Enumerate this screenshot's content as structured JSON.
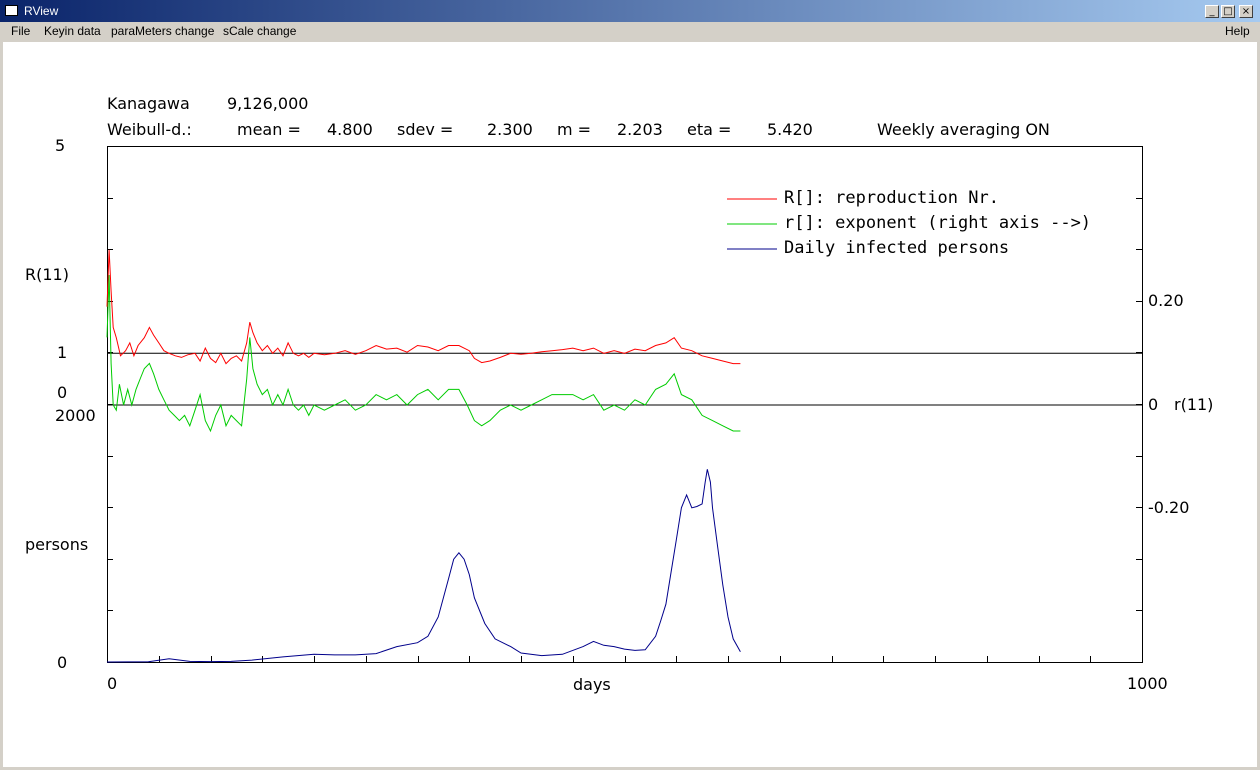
{
  "window": {
    "title": "RView"
  },
  "menu": {
    "file": "File",
    "keyin": "Keyin data",
    "params": "paraMeters change",
    "scale": "sCale change",
    "help": "Help"
  },
  "header": {
    "region": "Kanagawa",
    "population": "9,126,000",
    "weibull_prefix": "Weibull-d.:",
    "mean_label": "mean =",
    "mean": "4.800",
    "sdev_label": "sdev =",
    "sdev": "2.300",
    "m_label": "m =",
    "m": "2.203",
    "eta_label": "eta =",
    "eta": "5.420",
    "averaging": "Weekly averaging ON"
  },
  "chart_data": {
    "type": "line",
    "xlabel": "days",
    "xlim": [
      0,
      1000
    ],
    "x_tick_labels": [
      "0",
      "1000"
    ],
    "left_axis": {
      "R_label": "R(11)",
      "R_ticks": [
        "5",
        "1",
        "0"
      ],
      "persons_label": "persons",
      "persons_ticks": [
        "2000",
        "0"
      ]
    },
    "right_axis": {
      "label": "r(11)",
      "ticks": [
        "0.20",
        "0",
        "-0.20"
      ]
    },
    "colors": {
      "R": "#ff0000",
      "r": "#00cc00",
      "daily": "#00008b",
      "ref": "#000000"
    },
    "legend": [
      "R[]: reproduction Nr.",
      "r[]: exponent (right axis -->)",
      "Daily infected persons"
    ],
    "legend_placement": "top-right",
    "series": [
      {
        "name": "R[]: reproduction Nr.",
        "axis": "R",
        "points": [
          [
            0,
            1.9
          ],
          [
            2,
            3.0
          ],
          [
            4,
            2.2
          ],
          [
            6,
            1.5
          ],
          [
            9,
            1.3
          ],
          [
            13,
            0.95
          ],
          [
            18,
            1.05
          ],
          [
            22,
            1.2
          ],
          [
            26,
            0.95
          ],
          [
            30,
            1.15
          ],
          [
            36,
            1.3
          ],
          [
            41,
            1.5
          ],
          [
            45,
            1.35
          ],
          [
            50,
            1.2
          ],
          [
            55,
            1.05
          ],
          [
            60,
            1.0
          ],
          [
            66,
            0.95
          ],
          [
            72,
            0.92
          ],
          [
            78,
            0.97
          ],
          [
            85,
            1.0
          ],
          [
            90,
            0.85
          ],
          [
            95,
            1.1
          ],
          [
            100,
            0.9
          ],
          [
            105,
            0.82
          ],
          [
            110,
            1.0
          ],
          [
            115,
            0.8
          ],
          [
            120,
            0.9
          ],
          [
            125,
            0.95
          ],
          [
            130,
            0.85
          ],
          [
            135,
            1.2
          ],
          [
            138,
            1.6
          ],
          [
            141,
            1.4
          ],
          [
            145,
            1.2
          ],
          [
            150,
            1.05
          ],
          [
            155,
            1.15
          ],
          [
            160,
            1.0
          ],
          [
            165,
            1.1
          ],
          [
            170,
            0.95
          ],
          [
            175,
            1.2
          ],
          [
            180,
            1.0
          ],
          [
            185,
            0.95
          ],
          [
            190,
            1.0
          ],
          [
            195,
            0.92
          ],
          [
            200,
            1.0
          ],
          [
            210,
            0.97
          ],
          [
            220,
            1.0
          ],
          [
            230,
            1.05
          ],
          [
            240,
            0.98
          ],
          [
            250,
            1.05
          ],
          [
            260,
            1.15
          ],
          [
            270,
            1.08
          ],
          [
            280,
            1.1
          ],
          [
            290,
            1.02
          ],
          [
            300,
            1.15
          ],
          [
            310,
            1.12
          ],
          [
            320,
            1.05
          ],
          [
            330,
            1.15
          ],
          [
            340,
            1.15
          ],
          [
            350,
            1.05
          ],
          [
            355,
            0.9
          ],
          [
            362,
            0.82
          ],
          [
            370,
            0.85
          ],
          [
            380,
            0.92
          ],
          [
            390,
            1.0
          ],
          [
            400,
            0.98
          ],
          [
            410,
            1.0
          ],
          [
            420,
            1.03
          ],
          [
            430,
            1.05
          ],
          [
            440,
            1.07
          ],
          [
            450,
            1.1
          ],
          [
            460,
            1.05
          ],
          [
            470,
            1.1
          ],
          [
            480,
            1.0
          ],
          [
            490,
            1.05
          ],
          [
            500,
            1.0
          ],
          [
            510,
            1.08
          ],
          [
            520,
            1.05
          ],
          [
            530,
            1.15
          ],
          [
            540,
            1.2
          ],
          [
            548,
            1.3
          ],
          [
            555,
            1.1
          ],
          [
            565,
            1.05
          ],
          [
            575,
            0.95
          ],
          [
            585,
            0.9
          ],
          [
            595,
            0.85
          ],
          [
            605,
            0.8
          ],
          [
            612,
            0.8
          ]
        ]
      },
      {
        "name": "r[]: exponent (right axis -->)",
        "axis": "r",
        "points": [
          [
            0,
            0.13
          ],
          [
            2,
            0.25
          ],
          [
            4,
            0.08
          ],
          [
            6,
            0.0
          ],
          [
            9,
            -0.01
          ],
          [
            12,
            0.04
          ],
          [
            16,
            0.0
          ],
          [
            20,
            0.03
          ],
          [
            24,
            0.0
          ],
          [
            28,
            0.03
          ],
          [
            32,
            0.05
          ],
          [
            36,
            0.07
          ],
          [
            41,
            0.08
          ],
          [
            45,
            0.06
          ],
          [
            50,
            0.03
          ],
          [
            55,
            0.01
          ],
          [
            60,
            -0.01
          ],
          [
            65,
            -0.02
          ],
          [
            70,
            -0.03
          ],
          [
            75,
            -0.02
          ],
          [
            80,
            -0.04
          ],
          [
            85,
            -0.01
          ],
          [
            90,
            0.02
          ],
          [
            95,
            -0.03
          ],
          [
            100,
            -0.05
          ],
          [
            105,
            -0.02
          ],
          [
            110,
            0.0
          ],
          [
            115,
            -0.04
          ],
          [
            120,
            -0.02
          ],
          [
            125,
            -0.03
          ],
          [
            130,
            -0.04
          ],
          [
            135,
            0.05
          ],
          [
            138,
            0.13
          ],
          [
            141,
            0.07
          ],
          [
            145,
            0.04
          ],
          [
            150,
            0.02
          ],
          [
            155,
            0.03
          ],
          [
            160,
            0.0
          ],
          [
            165,
            0.02
          ],
          [
            170,
            0.0
          ],
          [
            175,
            0.03
          ],
          [
            180,
            0.0
          ],
          [
            185,
            -0.01
          ],
          [
            190,
            0.0
          ],
          [
            195,
            -0.02
          ],
          [
            200,
            0.0
          ],
          [
            210,
            -0.01
          ],
          [
            220,
            0.0
          ],
          [
            230,
            0.01
          ],
          [
            240,
            -0.01
          ],
          [
            250,
            0.0
          ],
          [
            260,
            0.02
          ],
          [
            270,
            0.01
          ],
          [
            280,
            0.02
          ],
          [
            290,
            0.0
          ],
          [
            300,
            0.02
          ],
          [
            310,
            0.03
          ],
          [
            320,
            0.01
          ],
          [
            330,
            0.03
          ],
          [
            340,
            0.03
          ],
          [
            348,
            0.0
          ],
          [
            355,
            -0.03
          ],
          [
            362,
            -0.04
          ],
          [
            370,
            -0.03
          ],
          [
            380,
            -0.01
          ],
          [
            390,
            0.0
          ],
          [
            400,
            -0.01
          ],
          [
            410,
            0.0
          ],
          [
            420,
            0.01
          ],
          [
            430,
            0.02
          ],
          [
            440,
            0.02
          ],
          [
            450,
            0.02
          ],
          [
            460,
            0.01
          ],
          [
            470,
            0.02
          ],
          [
            480,
            -0.01
          ],
          [
            490,
            0.0
          ],
          [
            500,
            -0.01
          ],
          [
            510,
            0.01
          ],
          [
            520,
            0.0
          ],
          [
            530,
            0.03
          ],
          [
            540,
            0.04
          ],
          [
            548,
            0.06
          ],
          [
            555,
            0.02
          ],
          [
            565,
            0.01
          ],
          [
            575,
            -0.02
          ],
          [
            585,
            -0.03
          ],
          [
            595,
            -0.04
          ],
          [
            605,
            -0.05
          ],
          [
            612,
            -0.05
          ]
        ]
      },
      {
        "name": "Daily infected persons",
        "axis": "persons",
        "points": [
          [
            0,
            0
          ],
          [
            40,
            2
          ],
          [
            60,
            25
          ],
          [
            80,
            5
          ],
          [
            100,
            3
          ],
          [
            120,
            5
          ],
          [
            140,
            15
          ],
          [
            170,
            40
          ],
          [
            200,
            60
          ],
          [
            220,
            55
          ],
          [
            240,
            55
          ],
          [
            260,
            65
          ],
          [
            280,
            120
          ],
          [
            300,
            150
          ],
          [
            310,
            200
          ],
          [
            320,
            350
          ],
          [
            325,
            500
          ],
          [
            330,
            650
          ],
          [
            335,
            800
          ],
          [
            340,
            850
          ],
          [
            345,
            800
          ],
          [
            350,
            680
          ],
          [
            355,
            500
          ],
          [
            365,
            300
          ],
          [
            375,
            180
          ],
          [
            390,
            120
          ],
          [
            400,
            70
          ],
          [
            420,
            50
          ],
          [
            440,
            60
          ],
          [
            460,
            120
          ],
          [
            470,
            160
          ],
          [
            480,
            130
          ],
          [
            490,
            120
          ],
          [
            500,
            100
          ],
          [
            510,
            90
          ],
          [
            520,
            95
          ],
          [
            530,
            200
          ],
          [
            535,
            320
          ],
          [
            540,
            450
          ],
          [
            545,
            700
          ],
          [
            550,
            950
          ],
          [
            555,
            1200
          ],
          [
            560,
            1300
          ],
          [
            565,
            1200
          ],
          [
            570,
            1210
          ],
          [
            575,
            1230
          ],
          [
            578,
            1400
          ],
          [
            580,
            1500
          ],
          [
            583,
            1400
          ],
          [
            585,
            1200
          ],
          [
            590,
            900
          ],
          [
            595,
            600
          ],
          [
            600,
            350
          ],
          [
            605,
            180
          ],
          [
            612,
            80
          ]
        ]
      },
      {
        "name": "R = 1",
        "axis": "R",
        "points": [
          [
            0,
            1
          ],
          [
            1000,
            1
          ]
        ]
      },
      {
        "name": "r = 0",
        "axis": "r",
        "points": [
          [
            0,
            0
          ],
          [
            1000,
            0
          ]
        ]
      }
    ]
  }
}
